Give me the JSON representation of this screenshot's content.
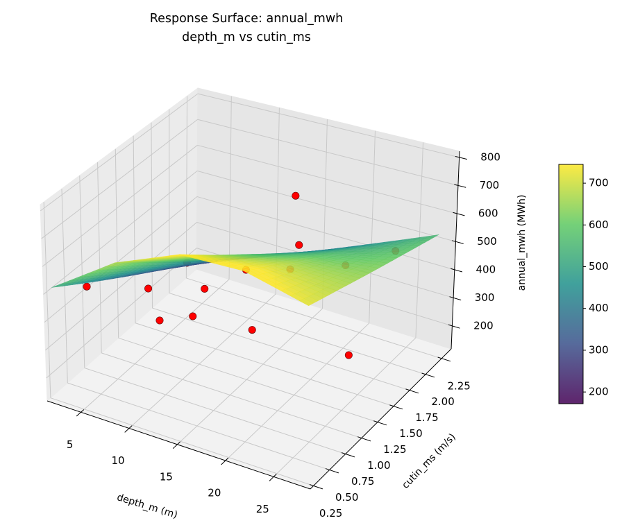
{
  "chart_data": {
    "type": "surface",
    "title": "Response Surface: annual_mwh",
    "subtitle": "depth_m vs cutin_ms",
    "xlabel": "depth_m (m)",
    "ylabel": "cutin_ms (m/s)",
    "zlabel": "annual_mwh (MWh)",
    "xlim": [
      1.5,
      28.8
    ],
    "ylim": [
      0.2,
      2.4
    ],
    "zlim": [
      118,
      822
    ],
    "xticks": [
      "5",
      "10",
      "15",
      "20",
      "25"
    ],
    "yticks": [
      "0.25",
      "0.50",
      "0.75",
      "1.00",
      "1.25",
      "1.50",
      "1.75",
      "2.00",
      "2.25"
    ],
    "zticks": [
      "200",
      "300",
      "400",
      "500",
      "600",
      "700",
      "800"
    ],
    "grid": true,
    "colormap": "viridis",
    "colormap_stops": [
      "#440154",
      "#3b528b",
      "#21918c",
      "#5ec962",
      "#fde725"
    ],
    "colorbar": {
      "range": [
        172,
        745
      ],
      "ticks": [
        "200",
        "300",
        "400",
        "500",
        "600",
        "700"
      ],
      "placement": "right"
    },
    "surface": {
      "x": [
        2,
        8.5,
        15,
        21.5,
        28
      ],
      "y": [
        0.25,
        0.75,
        1.25,
        1.75,
        2.25
      ],
      "z": [
        [
          520,
          676,
          770,
          776,
          720
        ],
        [
          435,
          576,
          668,
          697,
          678
        ],
        [
          350,
          474,
          568,
          617,
          635
        ],
        [
          265,
          374,
          466,
          537,
          593
        ],
        [
          180,
          272,
          365,
          458,
          550
        ]
      ]
    },
    "scatter": {
      "color": "#ff0000",
      "points": [
        {
          "x": 16.7,
          "y": 1.71,
          "z": 700
        },
        {
          "x": 8.9,
          "y": 1.23,
          "z": 480
        },
        {
          "x": 6.3,
          "y": 1.19,
          "z": 250
        },
        {
          "x": 9.7,
          "y": 1.2,
          "z": 300
        },
        {
          "x": 14.3,
          "y": 1.43,
          "z": 250
        },
        {
          "x": 22.9,
          "y": 1.66,
          "z": 200
        },
        {
          "x": 4.0,
          "y": 0.47,
          "z": 500
        },
        {
          "x": 9.3,
          "y": 0.61,
          "z": 520
        },
        {
          "x": 13.6,
          "y": 0.82,
          "z": 520
        },
        {
          "x": 14.1,
          "y": 1.36,
          "z": 480
        },
        {
          "x": 17.5,
          "y": 1.53,
          "z": 480
        },
        {
          "x": 17.0,
          "y": 1.73,
          "z": 520
        },
        {
          "x": 22.0,
          "y": 1.71,
          "z": 500
        },
        {
          "x": 25.2,
          "y": 2.0,
          "z": 520
        }
      ]
    }
  }
}
